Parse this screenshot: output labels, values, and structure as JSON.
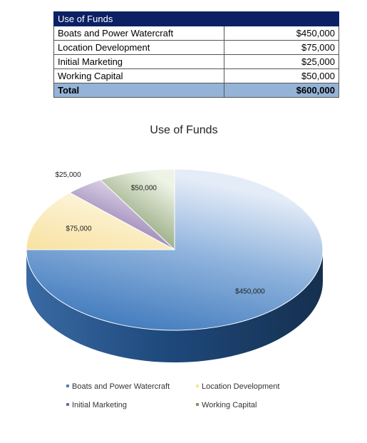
{
  "table": {
    "header": "Use of Funds",
    "rows": [
      {
        "label": "Boats and Power Watercraft",
        "amount": "$450,000"
      },
      {
        "label": "Location Development",
        "amount": "$75,000"
      },
      {
        "label": "Initial Marketing",
        "amount": "$25,000"
      },
      {
        "label": "Working Capital",
        "amount": "$50,000"
      }
    ],
    "total": {
      "label": "Total",
      "amount": "$600,000"
    }
  },
  "chart_data": {
    "type": "pie",
    "title": "Use of Funds",
    "categories": [
      "Boats and Power Watercraft",
      "Location Development",
      "Initial Marketing",
      "Working Capital"
    ],
    "values": [
      450000,
      75000,
      25000,
      50000
    ],
    "data_labels": [
      "$450,000",
      "$75,000",
      "$25,000",
      "$50,000"
    ],
    "colors": [
      "#4f81bd",
      "#f6e3a3",
      "#8064a2",
      "#7a9a5c"
    ],
    "legend": "bottom",
    "style": "3d"
  }
}
